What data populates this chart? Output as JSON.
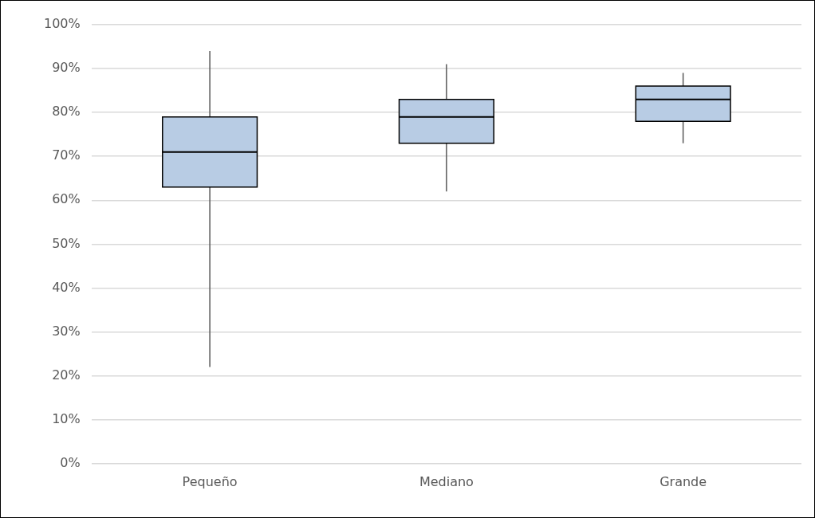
{
  "chart_data": {
    "type": "box",
    "categories": [
      "Pequeño",
      "Mediano",
      "Grande"
    ],
    "boxes": [
      {
        "low": 22,
        "q1": 63,
        "median": 71,
        "q3": 79,
        "high": 94
      },
      {
        "low": 62,
        "q1": 73,
        "median": 79,
        "q3": 83,
        "high": 91
      },
      {
        "low": 73,
        "q1": 78,
        "median": 83,
        "q3": 86,
        "high": 89
      }
    ],
    "color": "#b8cce4",
    "ylim": [
      0,
      100
    ],
    "yticks": [
      {
        "value": 0,
        "label": "0%"
      },
      {
        "value": 10,
        "label": "10%"
      },
      {
        "value": 20,
        "label": "20%"
      },
      {
        "value": 30,
        "label": "30%"
      },
      {
        "value": 40,
        "label": "40%"
      },
      {
        "value": 50,
        "label": "50%"
      },
      {
        "value": 60,
        "label": "60%"
      },
      {
        "value": 70,
        "label": "70%"
      },
      {
        "value": 80,
        "label": "80%"
      },
      {
        "value": 90,
        "label": "90%"
      },
      {
        "value": 100,
        "label": "100%"
      }
    ],
    "grid": "y",
    "legend": false
  }
}
